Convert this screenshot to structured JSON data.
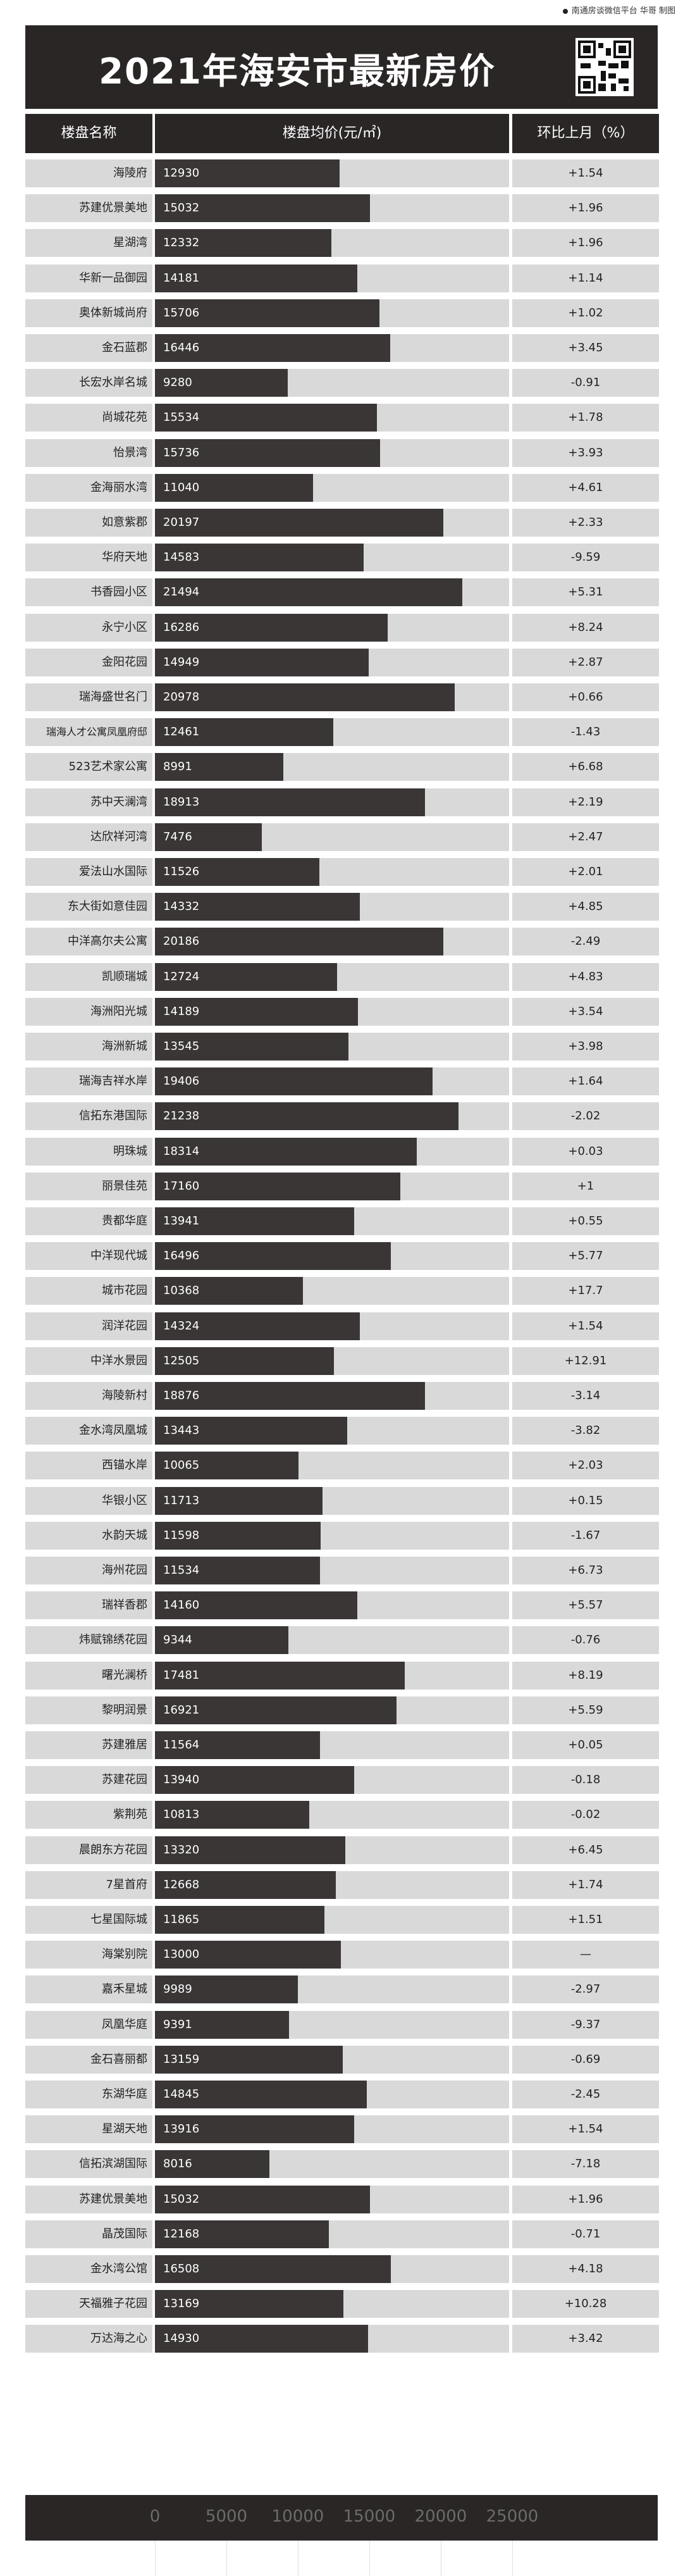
{
  "source_note": "南通房谈微信平台 华哥 制图",
  "title": "2021年海安市最新房价",
  "headers": {
    "name": "楼盘名称",
    "price": "楼盘均价(元/㎡)",
    "change": "环比上月（%）"
  },
  "chart_data": {
    "type": "bar",
    "orientation": "horizontal",
    "title": "2021年海安市最新房价",
    "xlabel": "楼盘均价(元/㎡)",
    "xlim": [
      0,
      30000
    ],
    "xticks": [
      0,
      5000,
      10000,
      15000,
      20000,
      25000
    ],
    "categories": [
      "海陵府",
      "苏建优景美地",
      "星湖湾",
      "华新一品御园",
      "奥体新城尚府",
      "金石蓝郡",
      "长宏水岸名城",
      "尚城花苑",
      "怡景湾",
      "金海丽水湾",
      "如意紫郡",
      "华府天地",
      "书香园小区",
      "永宁小区",
      "金阳花园",
      "瑞海盛世名门",
      "瑞海人才公寓凤凰府邸",
      "523艺术家公寓",
      "苏中天澜湾",
      "达欣祥河湾",
      "爱法山水国际",
      "东大街如意佳园",
      "中洋高尔夫公寓",
      "凯顺瑞城",
      "海洲阳光城",
      "海洲新城",
      "瑞海吉祥水岸",
      "信拓东港国际",
      "明珠城",
      "丽景佳苑",
      "贵都华庭",
      "中洋现代城",
      "城市花园",
      "润洋花园",
      "中洋水景园",
      "海陵新村",
      "金水湾凤凰城",
      "西锚水岸",
      "华银小区",
      "水韵天城",
      "海州花园",
      "瑞祥香郡",
      "炜赋锦绣花园",
      "曙光澜桥",
      "黎明润景",
      "苏建雅居",
      "苏建花园",
      "紫荆苑",
      "晨朗东方花园",
      "7星首府",
      "七星国际城",
      "海棠别院",
      "嘉禾星城",
      "凤凰华庭",
      "金石喜丽都",
      "东湖华庭",
      "星湖天地",
      "信拓滨湖国际",
      "苏建优景美地",
      "晶茂国际",
      "金水湾公馆",
      "天福雅子花园",
      "万达海之心"
    ],
    "values": [
      12930,
      15032,
      12332,
      14181,
      15706,
      16446,
      9280,
      15534,
      15736,
      11040,
      20197,
      14583,
      21494,
      16286,
      14949,
      20978,
      12461,
      8991,
      18913,
      7476,
      11526,
      14332,
      20186,
      12724,
      14189,
      13545,
      19406,
      21238,
      18314,
      17160,
      13941,
      16496,
      10368,
      14324,
      12505,
      18876,
      13443,
      10065,
      11713,
      11598,
      11534,
      14160,
      9344,
      17481,
      16921,
      11564,
      13940,
      10813,
      13320,
      12668,
      11865,
      13000,
      9989,
      9391,
      13159,
      14845,
      13916,
      8016,
      15032,
      12168,
      16508,
      13169,
      14930
    ],
    "changes": [
      "+1.54",
      "+1.96",
      "+1.96",
      "+1.14",
      "+1.02",
      "+3.45",
      "-0.91",
      "+1.78",
      "+3.93",
      "+4.61",
      "+2.33",
      "-9.59",
      "+5.31",
      "+8.24",
      "+2.87",
      "+0.66",
      "-1.43",
      "+6.68",
      "+2.19",
      "+2.47",
      "+2.01",
      "+4.85",
      "-2.49",
      "+4.83",
      "+3.54",
      "+3.98",
      "+1.64",
      "-2.02",
      "+0.03",
      "+1",
      "+0.55",
      "+5.77",
      "+17.7",
      "+1.54",
      "+12.91",
      "-3.14",
      "-3.82",
      "+2.03",
      "+0.15",
      "-1.67",
      "+6.73",
      "+5.57",
      "-0.76",
      "+8.19",
      "+5.59",
      "+0.05",
      "-0.18",
      "-0.02",
      "+6.45",
      "+1.74",
      "+1.51",
      "—",
      "-2.97",
      "-9.37",
      "-0.69",
      "-2.45",
      "+1.54",
      "-7.18",
      "+1.96",
      "-0.71",
      "+4.18",
      "+10.28",
      "+3.42"
    ],
    "colors": {
      "bar": "#3b3636",
      "background": "#d9d9d9",
      "header": "#2a2626"
    }
  }
}
